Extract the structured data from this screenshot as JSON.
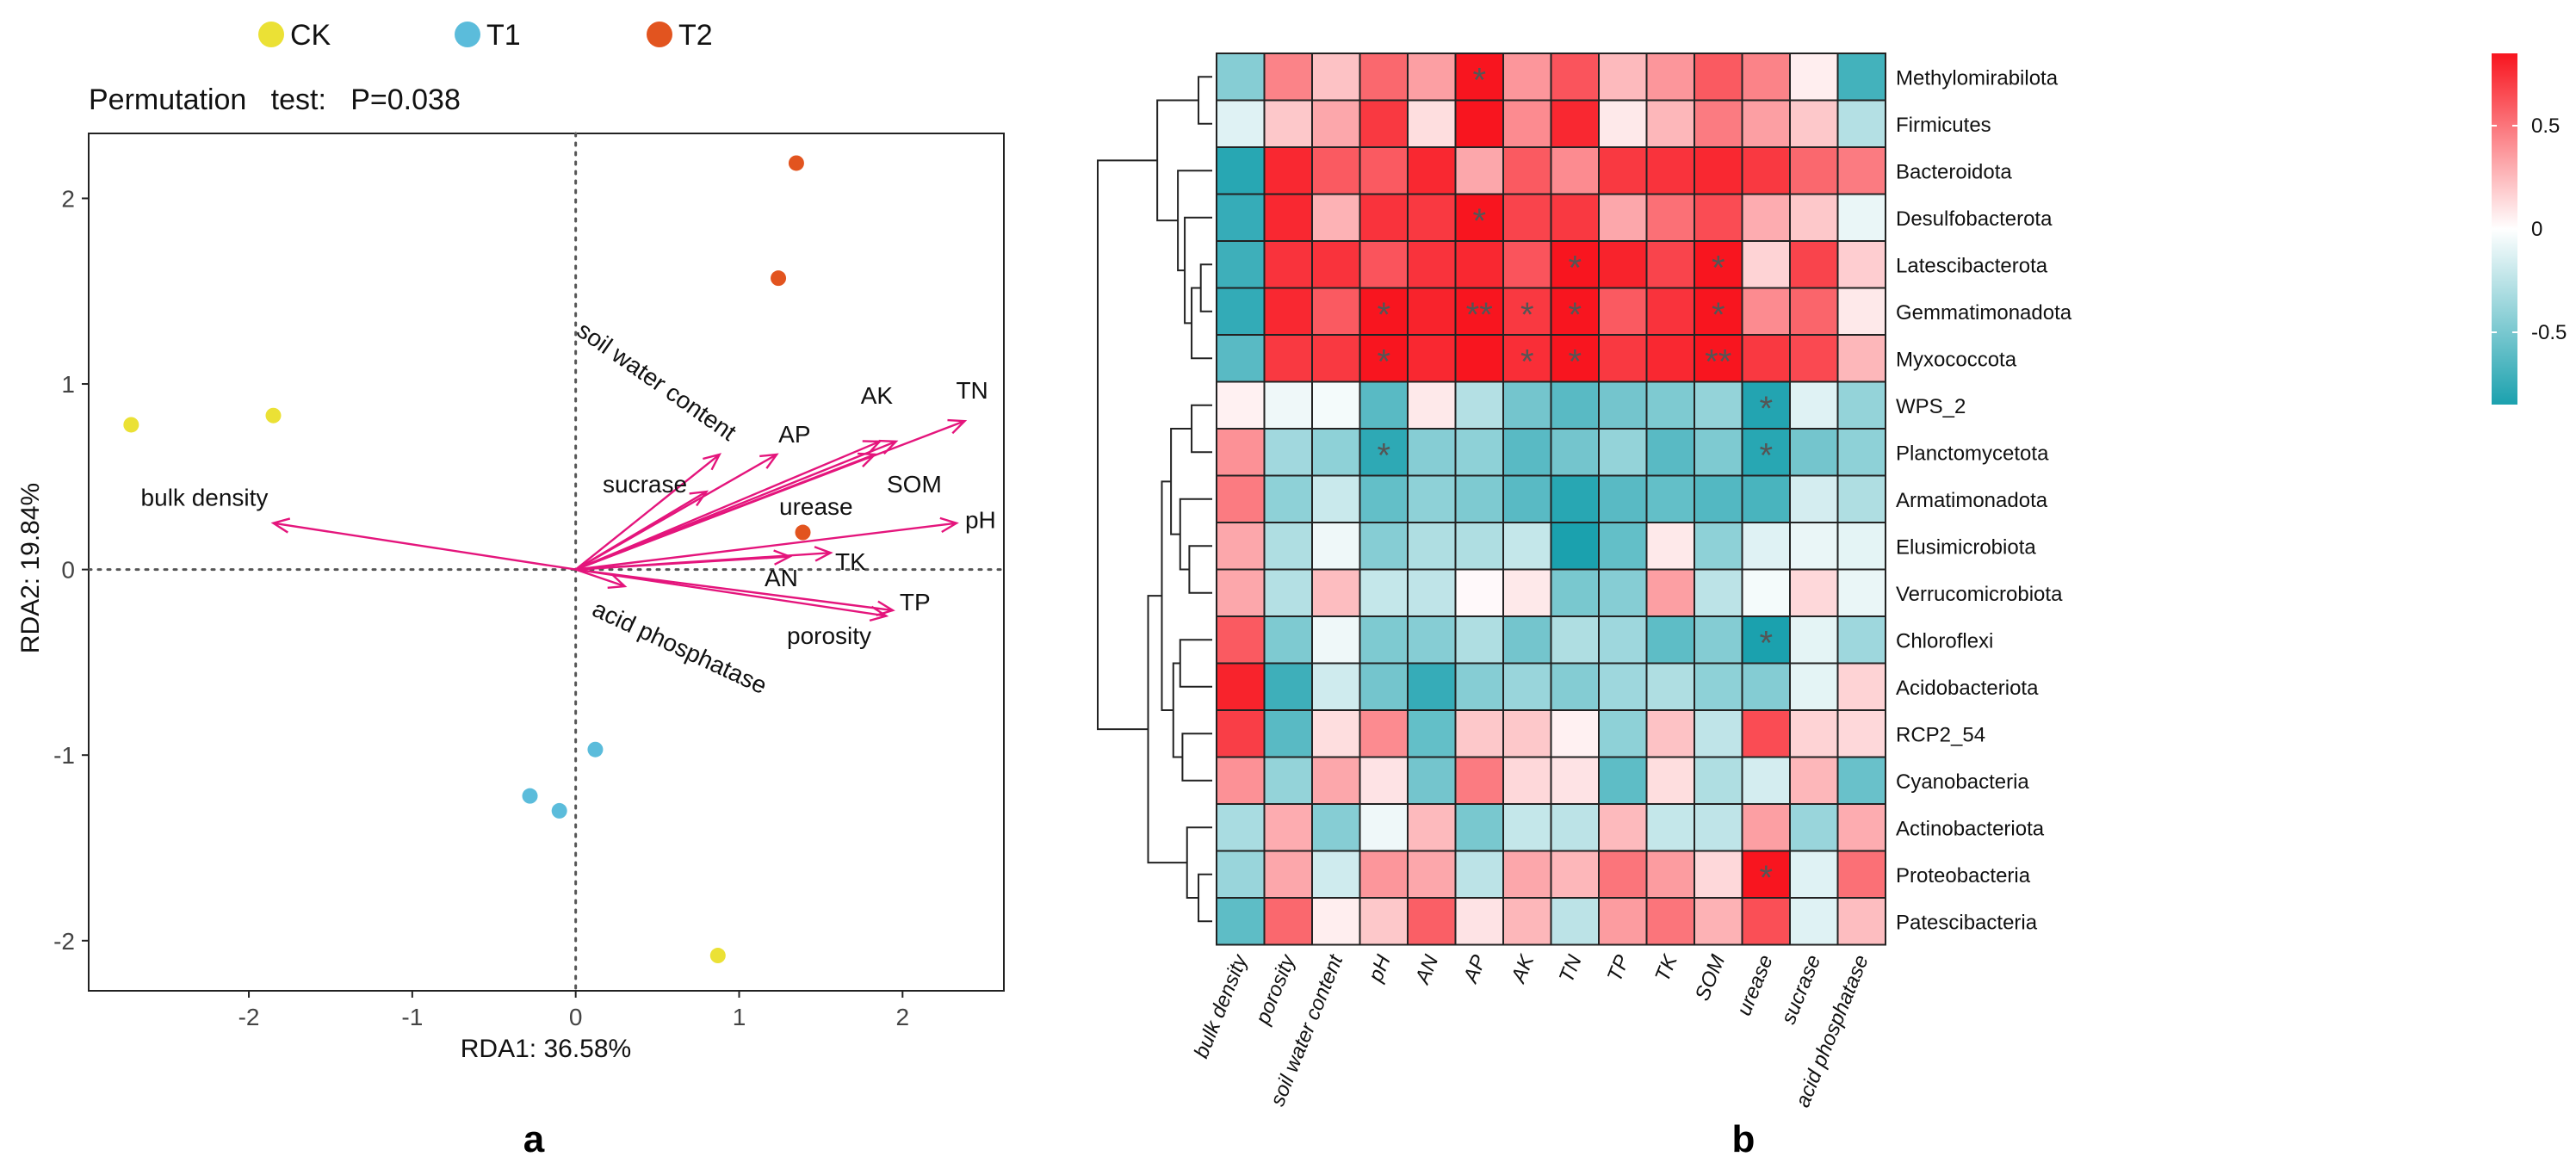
{
  "panels": {
    "a": "a",
    "b": "b"
  },
  "colors": {
    "CK": "#ebe135",
    "T1": "#5bbcdb",
    "T2": "#e2541f",
    "arrow": "#e4157c",
    "heat_low": "#1ba1ae",
    "heat_mid": "#ffffff",
    "heat_high": "#f8151f",
    "star": "#555555"
  },
  "chart_data": [
    {
      "type": "scatter",
      "panel": "a",
      "subtitle": "Permutation   test:   P=0.038",
      "xlabel": "RDA1: 36.58%",
      "ylabel": "RDA2: 19.84%",
      "xlim": [
        -2.98,
        2.62
      ],
      "ylim": [
        -2.27,
        2.35
      ],
      "xticks": [
        -2,
        -1,
        0,
        1,
        2
      ],
      "yticks": [
        -2,
        -1,
        0,
        1,
        2
      ],
      "legend": {
        "placement": "top",
        "entries": [
          "CK",
          "T1",
          "T2"
        ]
      },
      "points": [
        {
          "group": "CK",
          "x": -2.72,
          "y": 0.78
        },
        {
          "group": "CK",
          "x": -1.85,
          "y": 0.83
        },
        {
          "group": "CK",
          "x": 0.87,
          "y": -2.08
        },
        {
          "group": "T1",
          "x": 0.12,
          "y": -0.97
        },
        {
          "group": "T1",
          "x": -0.28,
          "y": -1.22
        },
        {
          "group": "T1",
          "x": -0.1,
          "y": -1.3
        },
        {
          "group": "T2",
          "x": 1.35,
          "y": 2.19
        },
        {
          "group": "T2",
          "x": 1.24,
          "y": 1.57
        },
        {
          "group": "T2",
          "x": 1.39,
          "y": 0.2
        }
      ],
      "vectors": [
        {
          "name": "bulk density",
          "x": -1.85,
          "y": 0.25
        },
        {
          "name": "soil water content",
          "x": 0.88,
          "y": 0.62
        },
        {
          "name": "AP",
          "x": 1.23,
          "y": 0.62
        },
        {
          "name": "sucrase",
          "x": 0.8,
          "y": 0.42
        },
        {
          "name": "AK",
          "x": 1.86,
          "y": 0.69
        },
        {
          "name": "TN",
          "x": 2.38,
          "y": 0.8
        },
        {
          "name": "SOM",
          "x": 1.96,
          "y": 0.69
        },
        {
          "name": "urease",
          "x": 1.83,
          "y": 0.62
        },
        {
          "name": "pH",
          "x": 2.33,
          "y": 0.25
        },
        {
          "name": "AN",
          "x": 1.31,
          "y": 0.07
        },
        {
          "name": "TK",
          "x": 1.56,
          "y": 0.09
        },
        {
          "name": "TP",
          "x": 1.94,
          "y": -0.22
        },
        {
          "name": "porosity",
          "x": 1.9,
          "y": -0.25
        },
        {
          "name": "acid phosphatase",
          "x": 0.3,
          "y": -0.09
        }
      ]
    },
    {
      "type": "heatmap",
      "panel": "b",
      "columns": [
        "bulk density",
        "porosity",
        "soil water content",
        "pH",
        "AN",
        "AP",
        "AK",
        "TN",
        "TP",
        "TK",
        "SOM",
        "urease",
        "sucrase",
        "acid phosphatase"
      ],
      "rows": [
        "Methylomirabilota",
        "Firmicutes",
        "Bacteroidota",
        "Desulfobacterota",
        "Latescibacterota",
        "Gemmatimonadota",
        "Myxococcota",
        "WPS_2",
        "Planctomycetota",
        "Armatimonadota",
        "Elusimicrobiota",
        "Verrucomicrobiota",
        "Chloroflexi",
        "Acidobacteriota",
        "RCP2_54",
        "Cyanobacteria",
        "Actinobacteriota",
        "Proteobacteria",
        "Patescibacteria"
      ],
      "values": [
        [
          -0.45,
          0.45,
          0.22,
          0.55,
          0.35,
          0.92,
          0.38,
          0.62,
          0.25,
          0.38,
          0.6,
          0.45,
          0.06,
          -0.7
        ],
        [
          -0.12,
          0.2,
          0.32,
          0.72,
          0.12,
          0.85,
          0.42,
          0.78,
          0.08,
          0.26,
          0.48,
          0.35,
          0.2,
          -0.28
        ],
        [
          -0.8,
          0.78,
          0.6,
          0.6,
          0.78,
          0.32,
          0.6,
          0.42,
          0.72,
          0.74,
          0.78,
          0.72,
          0.55,
          0.48
        ],
        [
          -0.75,
          0.78,
          0.28,
          0.74,
          0.72,
          0.85,
          0.68,
          0.72,
          0.32,
          0.52,
          0.65,
          0.3,
          0.2,
          -0.08
        ],
        [
          -0.72,
          0.74,
          0.74,
          0.62,
          0.74,
          0.78,
          0.62,
          0.9,
          0.8,
          0.68,
          0.86,
          0.16,
          0.68,
          0.18
        ],
        [
          -0.76,
          0.78,
          0.6,
          0.9,
          0.8,
          0.9,
          0.72,
          0.9,
          0.6,
          0.74,
          0.9,
          0.42,
          0.56,
          0.08
        ],
        [
          -0.62,
          0.72,
          0.72,
          0.92,
          0.78,
          0.85,
          0.76,
          0.86,
          0.72,
          0.78,
          0.86,
          0.72,
          0.66,
          0.26
        ],
        [
          0.05,
          -0.06,
          -0.04,
          -0.62,
          0.08,
          -0.28,
          -0.52,
          -0.62,
          -0.52,
          -0.48,
          -0.4,
          -0.82,
          -0.12,
          -0.4
        ],
        [
          0.4,
          -0.35,
          -0.42,
          -0.78,
          -0.45,
          -0.42,
          -0.62,
          -0.52,
          -0.4,
          -0.62,
          -0.48,
          -0.8,
          -0.52,
          -0.42
        ],
        [
          0.48,
          -0.42,
          -0.2,
          -0.58,
          -0.42,
          -0.48,
          -0.62,
          -0.8,
          -0.62,
          -0.58,
          -0.64,
          -0.68,
          -0.16,
          -0.3
        ],
        [
          0.32,
          -0.3,
          -0.06,
          -0.45,
          -0.3,
          -0.3,
          -0.22,
          -0.86,
          -0.58,
          0.08,
          -0.42,
          -0.12,
          -0.08,
          -0.1
        ],
        [
          0.32,
          -0.28,
          0.24,
          -0.22,
          -0.24,
          0.02,
          0.08,
          -0.5,
          -0.45,
          0.35,
          -0.25,
          -0.04,
          0.14,
          -0.08
        ],
        [
          0.6,
          -0.48,
          -0.06,
          -0.48,
          -0.45,
          -0.3,
          -0.52,
          -0.3,
          -0.36,
          -0.6,
          -0.46,
          -0.85,
          -0.1,
          -0.36
        ],
        [
          0.8,
          -0.72,
          -0.18,
          -0.52,
          -0.75,
          -0.45,
          -0.38,
          -0.46,
          -0.36,
          -0.3,
          -0.42,
          -0.46,
          -0.1,
          0.16
        ],
        [
          0.7,
          -0.62,
          0.12,
          0.42,
          -0.58,
          0.2,
          0.2,
          0.05,
          -0.42,
          0.22,
          -0.24,
          0.65,
          0.16,
          0.14
        ],
        [
          0.4,
          -0.4,
          0.32,
          0.1,
          -0.52,
          0.48,
          0.14,
          0.1,
          -0.6,
          0.12,
          -0.3,
          -0.16,
          0.26,
          -0.56
        ],
        [
          -0.32,
          0.3,
          -0.45,
          -0.06,
          0.25,
          -0.5,
          -0.22,
          -0.25,
          0.25,
          -0.22,
          -0.24,
          0.35,
          -0.38,
          0.3
        ],
        [
          -0.38,
          0.32,
          -0.18,
          0.38,
          0.32,
          -0.25,
          0.32,
          0.26,
          0.5,
          0.36,
          0.14,
          0.9,
          -0.12,
          0.52
        ],
        [
          -0.6,
          0.55,
          0.06,
          0.2,
          0.58,
          0.1,
          0.26,
          -0.25,
          0.36,
          0.5,
          0.28,
          0.64,
          -0.12,
          0.24
        ]
      ],
      "significance": [
        [
          "",
          "",
          "",
          "",
          "",
          "*",
          "",
          "",
          "",
          "",
          "",
          "",
          "",
          ""
        ],
        [
          "",
          "",
          "",
          "",
          "",
          "",
          "",
          "",
          "",
          "",
          "",
          "",
          "",
          ""
        ],
        [
          "",
          "",
          "",
          "",
          "",
          "",
          "",
          "",
          "",
          "",
          "",
          "",
          "",
          ""
        ],
        [
          "",
          "",
          "",
          "",
          "",
          "*",
          "",
          "",
          "",
          "",
          "",
          "",
          "",
          ""
        ],
        [
          "",
          "",
          "",
          "",
          "",
          "",
          "",
          "*",
          "",
          "",
          "*",
          "",
          "",
          ""
        ],
        [
          "",
          "",
          "",
          "*",
          "",
          "**",
          "*",
          "*",
          "",
          "",
          "*",
          "",
          "",
          ""
        ],
        [
          "",
          "",
          "",
          "*",
          "",
          "",
          "*",
          "*",
          "",
          "",
          "**",
          "",
          "",
          ""
        ],
        [
          "",
          "",
          "",
          "",
          "",
          "",
          "",
          "",
          "",
          "",
          "",
          "*",
          "",
          ""
        ],
        [
          "",
          "",
          "",
          "*",
          "",
          "",
          "",
          "",
          "",
          "",
          "",
          "*",
          "",
          ""
        ],
        [
          "",
          "",
          "",
          "",
          "",
          "",
          "",
          "",
          "",
          "",
          "",
          "",
          "",
          ""
        ],
        [
          "",
          "",
          "",
          "",
          "",
          "",
          "",
          "",
          "",
          "",
          "",
          "",
          "",
          ""
        ],
        [
          "",
          "",
          "",
          "",
          "",
          "",
          "",
          "",
          "",
          "",
          "",
          "",
          "",
          ""
        ],
        [
          "",
          "",
          "",
          "",
          "",
          "",
          "",
          "",
          "",
          "",
          "",
          "*",
          "",
          ""
        ],
        [
          "",
          "",
          "",
          "",
          "",
          "",
          "",
          "",
          "",
          "",
          "",
          "",
          "",
          ""
        ],
        [
          "",
          "",
          "",
          "",
          "",
          "",
          "",
          "",
          "",
          "",
          "",
          "",
          "",
          ""
        ],
        [
          "",
          "",
          "",
          "",
          "",
          "",
          "",
          "",
          "",
          "",
          "",
          "",
          "",
          ""
        ],
        [
          "",
          "",
          "",
          "",
          "",
          "",
          "",
          "",
          "",
          "",
          "",
          "",
          "",
          ""
        ],
        [
          "",
          "",
          "",
          "",
          "",
          "",
          "",
          "",
          "",
          "",
          "",
          "*",
          "",
          ""
        ],
        [
          "",
          "",
          "",
          "",
          "",
          "",
          "",
          "",
          "",
          "",
          "",
          "",
          "",
          ""
        ]
      ],
      "colorbar": {
        "ticks": [
          0.5,
          0,
          -0.5
        ],
        "tick_labels": [
          "0.5",
          "0",
          "-0.5"
        ],
        "range": [
          -0.85,
          0.85
        ]
      },
      "dendrogram": {
        "placement": "left",
        "merges": [
          {
            "a": 0,
            "b": 1,
            "h": 0.12
          },
          {
            "a": 4,
            "b": 5,
            "h": 0.1
          },
          {
            "a": 20,
            "b": 6,
            "h": 0.18
          },
          {
            "a": 3,
            "b": 21,
            "h": 0.24
          },
          {
            "a": 2,
            "b": 22,
            "h": 0.3
          },
          {
            "a": 19,
            "b": 23,
            "h": 0.48
          },
          {
            "a": 7,
            "b": 8,
            "h": 0.18
          },
          {
            "a": 10,
            "b": 11,
            "h": 0.2
          },
          {
            "a": 9,
            "b": 26,
            "h": 0.28
          },
          {
            "a": 25,
            "b": 27,
            "h": 0.36
          },
          {
            "a": 12,
            "b": 13,
            "h": 0.28
          },
          {
            "a": 14,
            "b": 15,
            "h": 0.26
          },
          {
            "a": 29,
            "b": 30,
            "h": 0.34
          },
          {
            "a": 28,
            "b": 31,
            "h": 0.44
          },
          {
            "a": 17,
            "b": 18,
            "h": 0.12
          },
          {
            "a": 16,
            "b": 33,
            "h": 0.22
          },
          {
            "a": 32,
            "b": 34,
            "h": 0.56
          },
          {
            "a": 24,
            "b": 35,
            "h": 1.0
          }
        ]
      }
    }
  ]
}
